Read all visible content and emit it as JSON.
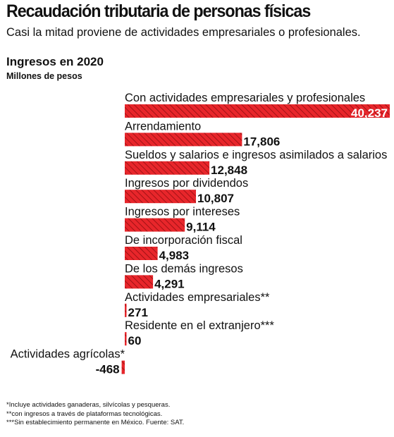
{
  "header": {
    "title": "Recaudación tributaria de personas físicas",
    "subtitle": "Casi la mitad proviene de actividades empresariales o profesionales."
  },
  "section_title": "Ingresos en 2020",
  "unit_label": "Millones de pesos",
  "colors": {
    "bar": "#e8262b",
    "hatch": "#8f0d10",
    "text": "#111111"
  },
  "chart_data": {
    "type": "bar",
    "orientation": "horizontal",
    "title": "Ingresos en 2020",
    "subtitle": "Millones de pesos",
    "categories": [
      "Con actividades empresariales y profesionales",
      "Arrendamiento",
      "Sueldos y salarios e ingresos asimilados a salarios",
      "Ingresos por dividendos",
      "Ingresos por intereses",
      "De incorporación fiscal",
      "De los demás ingresos",
      "Actividades empresariales**",
      "Residente en el extranjero***",
      "Actividades agrícolas*"
    ],
    "values": [
      40237,
      17806,
      12848,
      10807,
      9114,
      4983,
      4291,
      271,
      60,
      -468
    ],
    "value_labels": [
      "40,237",
      "17,806",
      "12,848",
      "10,807",
      "9,114",
      "4,983",
      "4,291",
      "271",
      "60",
      "-468"
    ],
    "xlim": [
      -468,
      40237
    ],
    "grid": false,
    "legend": "none"
  },
  "footnotes": [
    "*Incluye actividades ganaderas, silvícolas y pesqueras.",
    "**con ingresos a través de plataformas tecnológicas.",
    "***Sin establecimiento permanente en México. Fuente: SAT."
  ]
}
